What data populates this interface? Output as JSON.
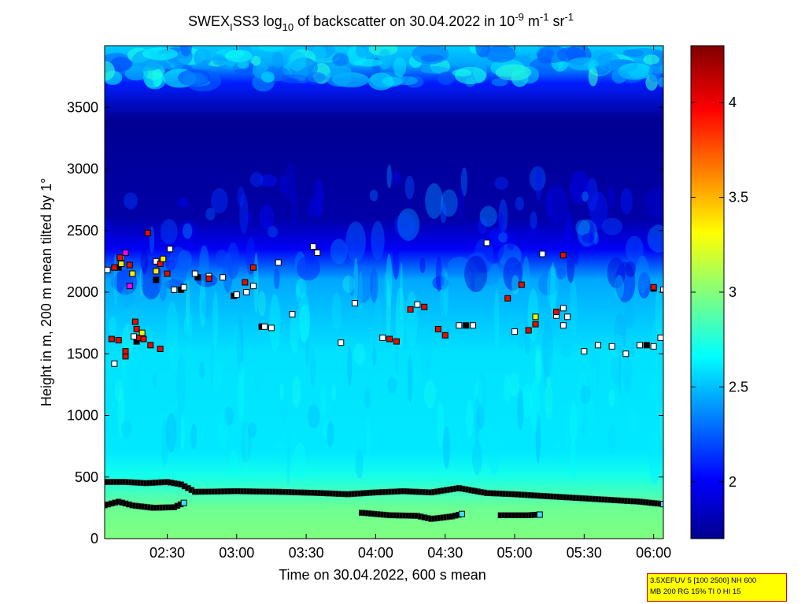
{
  "chart_data": {
    "type": "heatmap",
    "title_parts": {
      "prefix": "SWEX",
      "sub_i": "I",
      "mid": "SS3 log",
      "sub_10": "10",
      "after": " of backscatter on 30.04.2022 in 10",
      "sup1": "-9",
      "unit_m": " m",
      "sup2": "-1",
      "unit_sr": " sr",
      "sup3": "-1"
    },
    "xlabel": "Time on 30.04.2022, 600 s mean",
    "ylabel": "Height in m, 200 m mean tilted by 1°",
    "x_ticks": [
      "02:30",
      "03:00",
      "03:30",
      "04:00",
      "04:30",
      "05:00",
      "05:30",
      "06:00"
    ],
    "x_tick_hours": [
      2.5,
      3.0,
      3.5,
      4.0,
      4.5,
      5.0,
      5.5,
      6.0
    ],
    "xlim_hours": [
      2.05,
      6.07
    ],
    "y_ticks": [
      "0",
      "500",
      "1000",
      "1500",
      "2000",
      "2500",
      "3000",
      "3500"
    ],
    "y_tick_values": [
      0,
      500,
      1000,
      1500,
      2000,
      2500,
      3000,
      3500
    ],
    "ylim": [
      0,
      4000
    ],
    "colorbar": {
      "ticks": [
        "2",
        "2.5",
        "3",
        "3.5",
        "4"
      ],
      "tick_values": [
        2,
        2.5,
        3,
        3.5,
        4
      ],
      "range": [
        1.7,
        4.3
      ],
      "colormap": "jet"
    },
    "layers": {
      "surface_band_value": 2.95,
      "lower_layer_value": 2.6,
      "upper_clear_value": 1.75,
      "top_patchy_value": 2.45
    },
    "boundary_line_upper": {
      "t": [
        2.05,
        2.2,
        2.35,
        2.5,
        2.6,
        2.7,
        3.0,
        3.3,
        3.6,
        3.8,
        4.0,
        4.2,
        4.4,
        4.6,
        4.8,
        5.0,
        5.3,
        5.6,
        5.9,
        6.07
      ],
      "h": [
        460,
        460,
        450,
        460,
        440,
        380,
        385,
        380,
        370,
        360,
        375,
        385,
        375,
        410,
        370,
        360,
        340,
        320,
        300,
        280
      ]
    },
    "boundary_line_lower": {
      "t": [
        2.05,
        2.15,
        2.25,
        2.4,
        2.55,
        2.62
      ],
      "h": [
        270,
        300,
        270,
        250,
        255,
        290
      ]
    },
    "boundary_line_lower2": {
      "t": [
        3.9,
        4.1,
        4.3,
        4.4,
        4.55,
        4.62
      ],
      "h": [
        210,
        190,
        185,
        160,
        180,
        200
      ]
    },
    "boundary_line_lower3": {
      "t": [
        4.9,
        5.0,
        5.1,
        5.18
      ],
      "h": [
        190,
        190,
        190,
        195
      ]
    },
    "markers_white": [
      [
        2.42,
        2250
      ],
      [
        2.52,
        2350
      ],
      [
        2.55,
        2020
      ],
      [
        2.62,
        2040
      ],
      [
        2.7,
        2150
      ],
      [
        2.8,
        2130
      ],
      [
        2.9,
        2120
      ],
      [
        3.0,
        1980
      ],
      [
        3.07,
        2000
      ],
      [
        3.12,
        2050
      ],
      [
        3.2,
        1720
      ],
      [
        3.25,
        1710
      ],
      [
        3.3,
        2240
      ],
      [
        3.4,
        1820
      ],
      [
        3.55,
        2370
      ],
      [
        3.58,
        2320
      ],
      [
        3.75,
        1590
      ],
      [
        3.85,
        1910
      ],
      [
        4.05,
        1630
      ],
      [
        4.3,
        1900
      ],
      [
        4.6,
        1730
      ],
      [
        4.7,
        1730
      ],
      [
        4.8,
        2400
      ],
      [
        5.0,
        1680
      ],
      [
        5.2,
        2310
      ],
      [
        5.3,
        1810
      ],
      [
        5.35,
        1730
      ],
      [
        5.5,
        1520
      ],
      [
        5.6,
        1570
      ],
      [
        5.7,
        1560
      ],
      [
        5.8,
        1500
      ],
      [
        5.9,
        1570
      ],
      [
        6.0,
        1560
      ],
      [
        6.05,
        1630
      ],
      [
        6.07,
        2020
      ],
      [
        5.35,
        1870
      ],
      [
        5.38,
        1800
      ],
      [
        2.17,
        2280
      ],
      [
        2.26,
        1640
      ],
      [
        2.12,
        1420
      ],
      [
        2.07,
        2180
      ]
    ],
    "markers_black": [
      [
        2.05,
        2180
      ],
      [
        2.15,
        2200
      ],
      [
        2.28,
        1600
      ],
      [
        2.42,
        2100
      ],
      [
        2.6,
        2020
      ],
      [
        2.72,
        2120
      ],
      [
        2.98,
        1970
      ],
      [
        3.18,
        1720
      ],
      [
        5.95,
        1570
      ],
      [
        6.0,
        2030
      ],
      [
        4.65,
        1730
      ]
    ],
    "markers_red": [
      [
        2.1,
        1620
      ],
      [
        2.15,
        1610
      ],
      [
        2.12,
        2200
      ],
      [
        2.16,
        2280
      ],
      [
        2.23,
        2220
      ],
      [
        2.27,
        1760
      ],
      [
        2.28,
        1700
      ],
      [
        2.3,
        1630
      ],
      [
        2.33,
        1620
      ],
      [
        2.36,
        2480
      ],
      [
        2.38,
        1570
      ],
      [
        2.45,
        2230
      ],
      [
        2.5,
        2150
      ],
      [
        2.45,
        1540
      ],
      [
        2.8,
        2110
      ],
      [
        3.06,
        2080
      ],
      [
        3.12,
        2200
      ],
      [
        4.1,
        1620
      ],
      [
        4.15,
        1600
      ],
      [
        4.25,
        1860
      ],
      [
        4.35,
        1880
      ],
      [
        4.45,
        1700
      ],
      [
        4.5,
        1650
      ],
      [
        4.95,
        1950
      ],
      [
        5.05,
        2060
      ],
      [
        5.1,
        1690
      ],
      [
        5.15,
        1740
      ],
      [
        5.3,
        1840
      ],
      [
        5.35,
        2300
      ],
      [
        6.0,
        2040
      ],
      [
        2.2,
        1480
      ],
      [
        2.2,
        1520
      ]
    ],
    "markers_yellow": [
      [
        2.17,
        2230
      ],
      [
        2.25,
        2150
      ],
      [
        2.32,
        1670
      ],
      [
        2.42,
        2170
      ],
      [
        2.47,
        2270
      ],
      [
        5.15,
        1800
      ]
    ],
    "markers_magenta": [
      [
        2.2,
        2320
      ],
      [
        2.23,
        2050
      ]
    ],
    "markers_cyan": [
      [
        2.62,
        290
      ],
      [
        4.62,
        200
      ],
      [
        5.18,
        195
      ],
      [
        6.07,
        280
      ]
    ],
    "info_box_line1": "3.5XEFUV 5 [100 2500] NH 600",
    "info_box_line2": "MB 200 RG 15% TI 0 HI 15"
  }
}
